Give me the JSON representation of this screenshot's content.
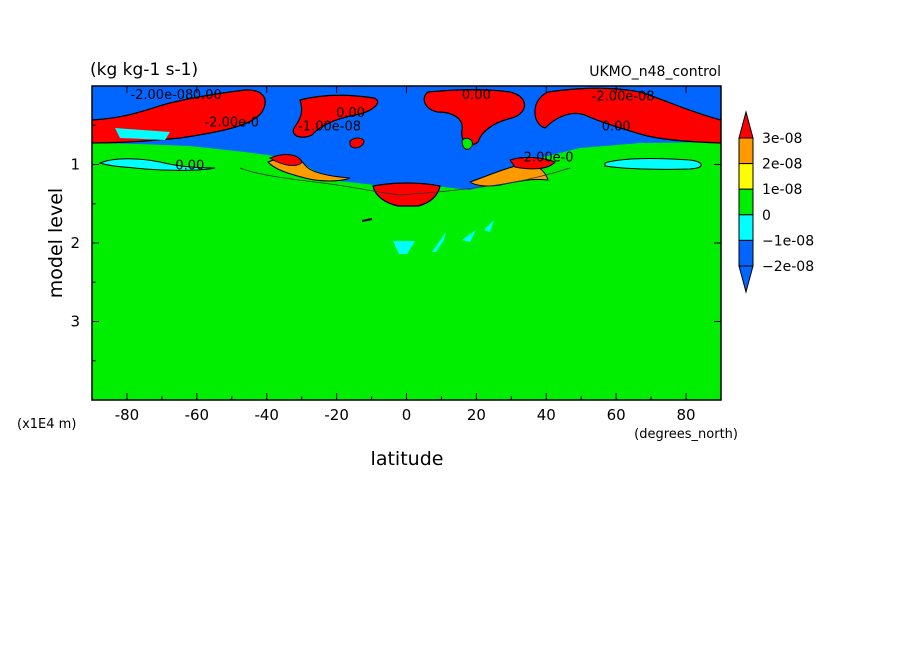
{
  "chart_data": {
    "type": "contour",
    "units_label": "(kg kg-1 s-1)",
    "model_label": "UKMO_n48_control",
    "xlabel": "latitude",
    "xunits": "(degrees_north)",
    "ylabel": "model level",
    "yunits": "(x1E4 m)",
    "xlim": [
      -90,
      90
    ],
    "ylim": [
      0,
      4
    ],
    "y_inverted": true,
    "x_ticks": [
      "-80",
      "-60",
      "-40",
      "-20",
      "0",
      "20",
      "40",
      "60",
      "80"
    ],
    "x_tick_values": [
      -80,
      -60,
      -40,
      -20,
      0,
      20,
      40,
      60,
      80
    ],
    "y_ticks": [
      "1",
      "2",
      "3"
    ],
    "y_tick_values": [
      1,
      2,
      3
    ],
    "colorbar": {
      "labels": [
        "3e-08",
        "2e-08",
        "1e-08",
        "0",
        "−1e-08",
        "−2e-08"
      ],
      "levels": [
        3e-08,
        2e-08,
        1e-08,
        0,
        -1e-08,
        -2e-08
      ],
      "colors": [
        "#ff0000",
        "#ff9900",
        "#ffff00",
        "#00ee00",
        "#00ffff",
        "#0066ff",
        "#0066ff"
      ]
    },
    "contour_labels": [
      {
        "text": "-2.00e-08",
        "lat": -70,
        "lev": 0.1
      },
      {
        "text": "0.00",
        "lat": -57,
        "lev": 0.1
      },
      {
        "text": "-2.00e-0",
        "lat": -50,
        "lev": 0.45
      },
      {
        "text": "0.00",
        "lat": -62,
        "lev": 1.0
      },
      {
        "text": "-1.00e-08",
        "lat": -22,
        "lev": 0.5
      },
      {
        "text": "0.00",
        "lat": -16,
        "lev": 0.33
      },
      {
        "text": "0.00",
        "lat": 20,
        "lev": 0.1
      },
      {
        "text": "-2.00e-08",
        "lat": 62,
        "lev": 0.12
      },
      {
        "text": "0.00",
        "lat": 60,
        "lev": 0.5
      },
      {
        "text": "-2.00e-0",
        "lat": 40,
        "lev": 0.9
      }
    ]
  }
}
